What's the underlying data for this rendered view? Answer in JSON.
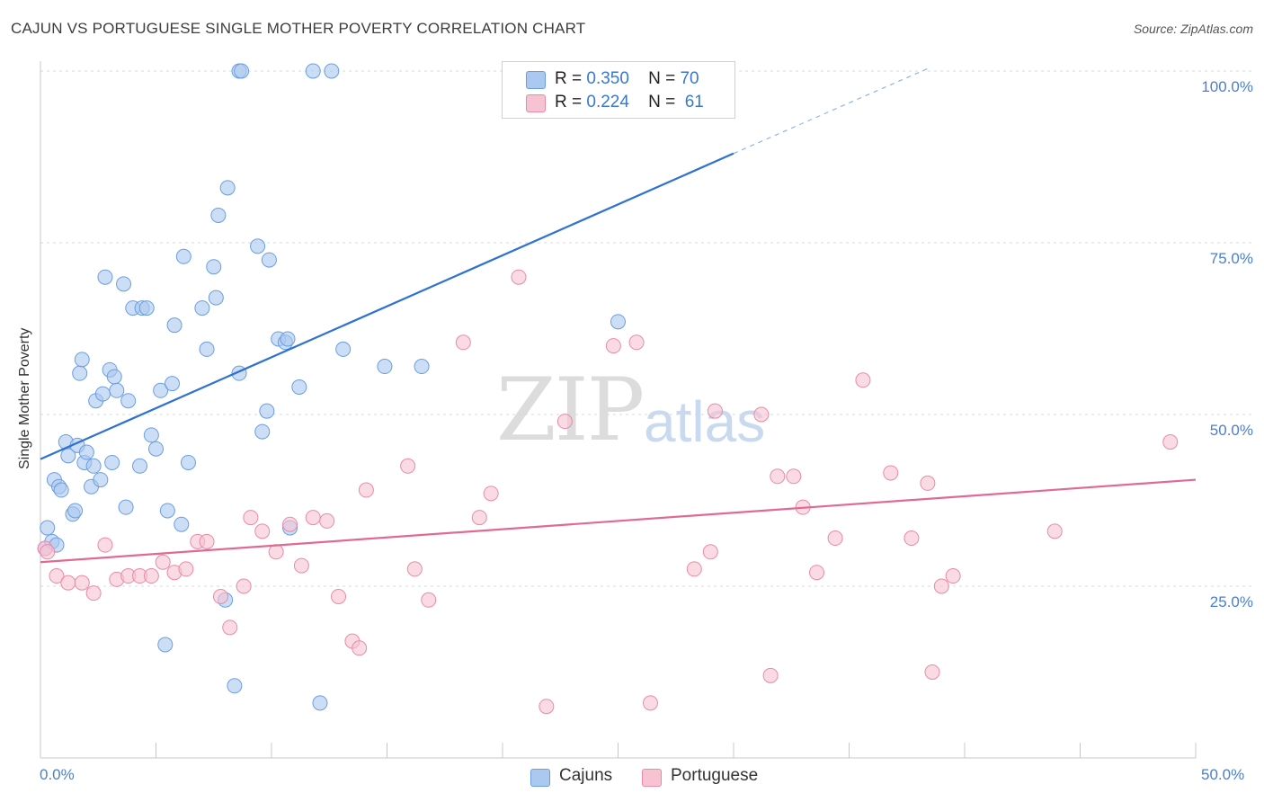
{
  "header": {
    "title": "CAJUN VS PORTUGUESE SINGLE MOTHER POVERTY CORRELATION CHART",
    "source": "Source: ZipAtlas.com"
  },
  "watermark": {
    "zip": "ZIP",
    "atlas": "atlas"
  },
  "legend": {
    "rows": [
      {
        "r_label": "R =",
        "r_value": "0.350",
        "n_label": "N =",
        "n_value": "70"
      },
      {
        "r_label": "R =",
        "r_value": "0.224",
        "n_label": "N =",
        "n_value": "61"
      }
    ]
  },
  "bottom_legend": {
    "cajuns": "Cajuns",
    "portuguese": "Portuguese"
  },
  "axes": {
    "ylabel": "Single Mother Poverty",
    "y_ticks": [
      "100.0%",
      "75.0%",
      "50.0%",
      "25.0%"
    ],
    "x_min_label": "0.0%",
    "x_max_label": "50.0%"
  },
  "colors": {
    "cajuns_fill": "#aac8f0",
    "cajuns_stroke": "#6b9ee0",
    "cajuns_line": "#2f72cf",
    "portuguese_fill": "#f7c3d2",
    "portuguese_stroke": "#e98aa8",
    "portuguese_line": "#e06a93"
  },
  "chart_data": {
    "type": "scatter",
    "title": "CAJUN VS PORTUGUESE SINGLE MOTHER POVERTY CORRELATION CHART",
    "xlabel": "",
    "ylabel": "Single Mother Poverty",
    "xlim": [
      0,
      50
    ],
    "ylim": [
      0,
      100
    ],
    "grid": true,
    "series": [
      {
        "name": "Cajuns",
        "R": 0.35,
        "N": 70,
        "trend": {
          "x0": 0,
          "y0": 43.5,
          "x1": 30,
          "y1": 88,
          "dashed_to_x": 38.5,
          "dashed_to_y": 100.5
        },
        "points": [
          [
            0.2,
            30.5
          ],
          [
            0.3,
            33.5
          ],
          [
            0.5,
            31.5
          ],
          [
            0.6,
            40.5
          ],
          [
            0.7,
            31
          ],
          [
            0.8,
            39.5
          ],
          [
            0.9,
            39
          ],
          [
            1.1,
            46
          ],
          [
            1.2,
            44
          ],
          [
            1.4,
            35.5
          ],
          [
            1.5,
            36
          ],
          [
            1.6,
            45.5
          ],
          [
            1.7,
            56
          ],
          [
            1.8,
            58
          ],
          [
            1.9,
            43
          ],
          [
            2.0,
            44.5
          ],
          [
            2.2,
            39.5
          ],
          [
            2.3,
            42.5
          ],
          [
            2.4,
            52
          ],
          [
            2.6,
            40.5
          ],
          [
            2.7,
            53
          ],
          [
            2.8,
            70
          ],
          [
            3.0,
            56.5
          ],
          [
            3.1,
            43
          ],
          [
            3.2,
            55.5
          ],
          [
            3.3,
            53.5
          ],
          [
            3.6,
            69
          ],
          [
            3.7,
            36.5
          ],
          [
            3.8,
            52
          ],
          [
            4.0,
            65.5
          ],
          [
            4.3,
            42.5
          ],
          [
            4.4,
            65.5
          ],
          [
            4.6,
            65.5
          ],
          [
            4.8,
            47
          ],
          [
            5.0,
            45
          ],
          [
            5.2,
            53.5
          ],
          [
            5.4,
            16.5
          ],
          [
            5.5,
            36
          ],
          [
            5.7,
            54.5
          ],
          [
            5.8,
            63
          ],
          [
            6.1,
            34
          ],
          [
            6.2,
            73
          ],
          [
            6.4,
            43
          ],
          [
            7.0,
            65.5
          ],
          [
            7.2,
            59.5
          ],
          [
            7.5,
            71.5
          ],
          [
            7.6,
            67
          ],
          [
            7.7,
            79
          ],
          [
            8.0,
            23
          ],
          [
            8.1,
            83
          ],
          [
            8.4,
            10.5
          ],
          [
            8.6,
            56
          ],
          [
            8.6,
            100
          ],
          [
            8.7,
            100
          ],
          [
            9.4,
            74.5
          ],
          [
            9.6,
            47.5
          ],
          [
            9.8,
            50.5
          ],
          [
            9.9,
            72.5
          ],
          [
            10.3,
            61
          ],
          [
            10.6,
            60.5
          ],
          [
            10.8,
            33.5
          ],
          [
            11.2,
            54
          ],
          [
            11.8,
            100
          ],
          [
            12.1,
            8
          ],
          [
            12.6,
            100
          ],
          [
            13.1,
            59.5
          ],
          [
            14.9,
            57
          ],
          [
            16.5,
            57
          ],
          [
            25.0,
            63.5
          ],
          [
            10.7,
            61
          ]
        ]
      },
      {
        "name": "Portuguese",
        "R": 0.224,
        "N": 61,
        "trend": {
          "x0": 0,
          "y0": 28.5,
          "x1": 50,
          "y1": 40.5
        },
        "points": [
          [
            0.2,
            30.5
          ],
          [
            0.3,
            30
          ],
          [
            0.7,
            26.5
          ],
          [
            1.2,
            25.5
          ],
          [
            1.8,
            25.5
          ],
          [
            2.3,
            24
          ],
          [
            2.8,
            31
          ],
          [
            3.3,
            26
          ],
          [
            3.8,
            26.5
          ],
          [
            4.3,
            26.5
          ],
          [
            4.8,
            26.5
          ],
          [
            5.3,
            28.5
          ],
          [
            5.8,
            27
          ],
          [
            6.3,
            27.5
          ],
          [
            6.8,
            31.5
          ],
          [
            7.2,
            31.5
          ],
          [
            7.8,
            23.5
          ],
          [
            8.2,
            19
          ],
          [
            8.8,
            25
          ],
          [
            9.1,
            35
          ],
          [
            9.6,
            33
          ],
          [
            10.2,
            30
          ],
          [
            10.8,
            34
          ],
          [
            11.3,
            28
          ],
          [
            11.8,
            35
          ],
          [
            12.4,
            34.5
          ],
          [
            12.9,
            23.5
          ],
          [
            13.5,
            17
          ],
          [
            13.8,
            16
          ],
          [
            14.1,
            39
          ],
          [
            15.9,
            42.5
          ],
          [
            16.2,
            27.5
          ],
          [
            16.8,
            23
          ],
          [
            18.3,
            60.5
          ],
          [
            19.0,
            35
          ],
          [
            19.5,
            38.5
          ],
          [
            20.7,
            70
          ],
          [
            21.9,
            7.5
          ],
          [
            22.7,
            49
          ],
          [
            24.8,
            60
          ],
          [
            25.8,
            60.5
          ],
          [
            26.4,
            8
          ],
          [
            28.3,
            27.5
          ],
          [
            29.0,
            30
          ],
          [
            29.2,
            50.5
          ],
          [
            31.2,
            50
          ],
          [
            31.6,
            12
          ],
          [
            31.9,
            41
          ],
          [
            32.6,
            41
          ],
          [
            33.0,
            36.5
          ],
          [
            33.6,
            27
          ],
          [
            34.4,
            32
          ],
          [
            35.6,
            55
          ],
          [
            36.8,
            41.5
          ],
          [
            37.7,
            32
          ],
          [
            38.4,
            40
          ],
          [
            38.6,
            12.5
          ],
          [
            39.0,
            25
          ],
          [
            39.5,
            26.5
          ],
          [
            43.9,
            33
          ],
          [
            48.9,
            46
          ]
        ]
      }
    ]
  }
}
